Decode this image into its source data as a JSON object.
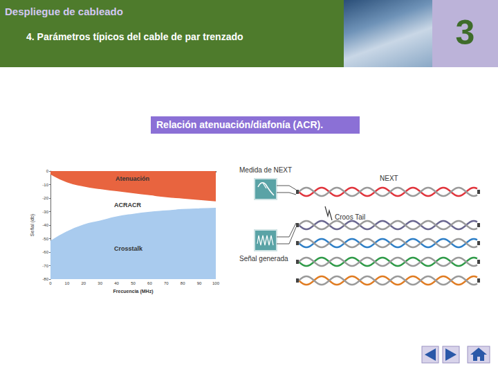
{
  "header": {
    "title": "Despliegue de cableado",
    "subtitle": "4. Parámetros típicos del cable de par trenzado",
    "number": "3"
  },
  "banner": "Relación atenuación/diafonía (ACR).",
  "chart_data": {
    "type": "area",
    "x_label": "Frecuencia (MHz)",
    "y_label": "Señal (db)",
    "x": [
      0,
      10,
      20,
      30,
      40,
      50,
      60,
      70,
      80,
      90,
      100
    ],
    "series": [
      {
        "name": "Atenuación",
        "color": "#e8643f",
        "values": [
          -2,
          -8,
          -11,
          -13,
          -14.5,
          -16,
          -17.5,
          -19,
          -20,
          -21,
          -22
        ]
      },
      {
        "name": "Crosstalk",
        "color": "#a9cbee",
        "values": [
          -52,
          -45,
          -40,
          -37,
          -34,
          -32,
          -30.5,
          -29.5,
          -28.5,
          -28,
          -27.5
        ]
      }
    ],
    "annotations": [
      "ACRACR"
    ],
    "xlim": [
      0,
      100
    ],
    "xticks": [
      0,
      10,
      20,
      30,
      40,
      50,
      60,
      70,
      80,
      90,
      100
    ],
    "ylim": [
      -80,
      0
    ],
    "yticks": [
      -80,
      -70,
      -60,
      -50,
      -40,
      -30,
      -20,
      -10,
      0
    ],
    "grid": false
  },
  "diagram": {
    "measure_label": "Medida de NEXT",
    "next_label": "NEXT",
    "crosstalk_label": "Croos Tail",
    "generated_label": "Señal generada"
  }
}
